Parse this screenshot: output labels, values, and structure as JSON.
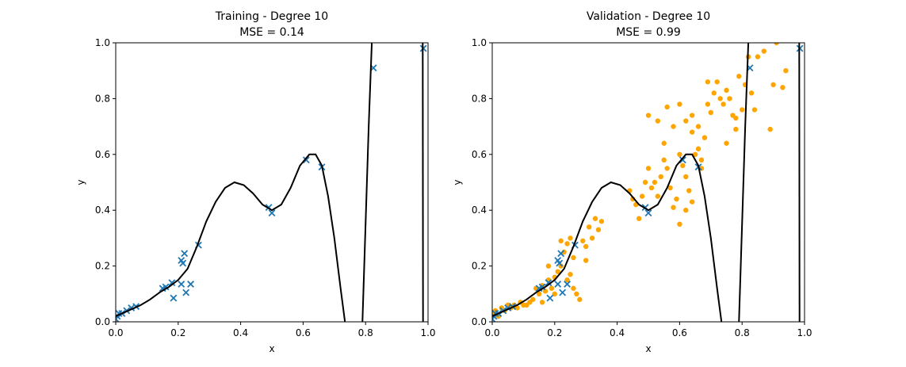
{
  "colors": {
    "train_marker": "#1f77b4",
    "val_marker": "#ffa500",
    "curve": "#000000",
    "axes": "#000000"
  },
  "chart_data": [
    {
      "id": "training",
      "type": "scatter",
      "title": "Training - Degree 10",
      "subtitle": "MSE = 0.14",
      "xlabel": "x",
      "ylabel": "y",
      "xlim": [
        0,
        1
      ],
      "ylim": [
        0,
        1
      ],
      "xticks": [
        "0.0",
        "0.2",
        "0.4",
        "0.6",
        "0.8",
        "1.0"
      ],
      "yticks": [
        "0.0",
        "0.2",
        "0.4",
        "0.6",
        "0.8",
        "1.0"
      ],
      "grid": false,
      "series": [
        {
          "kind": "x-marker",
          "points": [
            [
              0.0,
              0.01
            ],
            [
              0.005,
              0.02
            ],
            [
              0.01,
              0.03
            ],
            [
              0.02,
              0.03
            ],
            [
              0.035,
              0.04
            ],
            [
              0.05,
              0.05
            ],
            [
              0.065,
              0.055
            ],
            [
              0.15,
              0.12
            ],
            [
              0.16,
              0.125
            ],
            [
              0.18,
              0.14
            ],
            [
              0.185,
              0.085
            ],
            [
              0.21,
              0.135
            ],
            [
              0.21,
              0.22
            ],
            [
              0.215,
              0.21
            ],
            [
              0.22,
              0.245
            ],
            [
              0.225,
              0.105
            ],
            [
              0.24,
              0.135
            ],
            [
              0.265,
              0.275
            ],
            [
              0.49,
              0.41
            ],
            [
              0.5,
              0.39
            ],
            [
              0.61,
              0.58
            ],
            [
              0.66,
              0.555
            ],
            [
              0.825,
              0.91
            ],
            [
              0.985,
              0.98
            ]
          ]
        },
        {
          "kind": "curve",
          "points": [
            [
              0.0,
              0.02
            ],
            [
              0.02,
              0.03
            ],
            [
              0.05,
              0.045
            ],
            [
              0.08,
              0.06
            ],
            [
              0.11,
              0.08
            ],
            [
              0.14,
              0.105
            ],
            [
              0.17,
              0.125
            ],
            [
              0.2,
              0.15
            ],
            [
              0.23,
              0.19
            ],
            [
              0.26,
              0.27
            ],
            [
              0.29,
              0.36
            ],
            [
              0.32,
              0.43
            ],
            [
              0.35,
              0.48
            ],
            [
              0.38,
              0.5
            ],
            [
              0.41,
              0.49
            ],
            [
              0.44,
              0.46
            ],
            [
              0.47,
              0.42
            ],
            [
              0.5,
              0.4
            ],
            [
              0.53,
              0.42
            ],
            [
              0.56,
              0.48
            ],
            [
              0.59,
              0.56
            ],
            [
              0.62,
              0.6
            ],
            [
              0.64,
              0.6
            ],
            [
              0.66,
              0.56
            ],
            [
              0.68,
              0.45
            ],
            [
              0.7,
              0.3
            ],
            [
              0.72,
              0.12
            ],
            [
              0.734,
              0.0
            ]
          ]
        },
        {
          "kind": "curve",
          "points": [
            [
              0.79,
              0.0
            ],
            [
              0.8,
              0.35
            ],
            [
              0.81,
              0.7
            ],
            [
              0.82,
              1.0
            ]
          ]
        },
        {
          "kind": "curve",
          "points": [
            [
              0.983,
              1.0
            ],
            [
              0.984,
              0.0
            ]
          ]
        }
      ]
    },
    {
      "id": "validation",
      "type": "scatter",
      "title": "Validation - Degree 10",
      "subtitle": "MSE = 0.99",
      "xlabel": "x",
      "ylabel": "y",
      "xlim": [
        0,
        1
      ],
      "ylim": [
        0,
        1
      ],
      "xticks": [
        "0.0",
        "0.2",
        "0.4",
        "0.6",
        "0.8",
        "1.0"
      ],
      "yticks": [
        "0.0",
        "0.2",
        "0.4",
        "0.6",
        "0.8",
        "1.0"
      ],
      "grid": false,
      "series": [
        {
          "kind": "dot",
          "points": [
            [
              0.0,
              0.03
            ],
            [
              0.01,
              0.04
            ],
            [
              0.02,
              0.02
            ],
            [
              0.03,
              0.05
            ],
            [
              0.04,
              0.04
            ],
            [
              0.05,
              0.06
            ],
            [
              0.06,
              0.05
            ],
            [
              0.07,
              0.06
            ],
            [
              0.08,
              0.05
            ],
            [
              0.09,
              0.07
            ],
            [
              0.1,
              0.06
            ],
            [
              0.11,
              0.06
            ],
            [
              0.12,
              0.07
            ],
            [
              0.13,
              0.08
            ],
            [
              0.14,
              0.12
            ],
            [
              0.15,
              0.1
            ],
            [
              0.16,
              0.13
            ],
            [
              0.17,
              0.11
            ],
            [
              0.18,
              0.15
            ],
            [
              0.19,
              0.12
            ],
            [
              0.2,
              0.16
            ],
            [
              0.21,
              0.18
            ],
            [
              0.22,
              0.2
            ],
            [
              0.23,
              0.25
            ],
            [
              0.24,
              0.28
            ],
            [
              0.25,
              0.17
            ],
            [
              0.26,
              0.12
            ],
            [
              0.27,
              0.1
            ],
            [
              0.28,
              0.08
            ],
            [
              0.22,
              0.29
            ],
            [
              0.25,
              0.3
            ],
            [
              0.3,
              0.27
            ],
            [
              0.32,
              0.3
            ],
            [
              0.33,
              0.37
            ],
            [
              0.34,
              0.33
            ],
            [
              0.3,
              0.22
            ],
            [
              0.18,
              0.2
            ],
            [
              0.16,
              0.07
            ],
            [
              0.2,
              0.1
            ],
            [
              0.24,
              0.15
            ],
            [
              0.26,
              0.23
            ],
            [
              0.29,
              0.29
            ],
            [
              0.31,
              0.34
            ],
            [
              0.35,
              0.36
            ],
            [
              0.44,
              0.47
            ],
            [
              0.45,
              0.44
            ],
            [
              0.46,
              0.42
            ],
            [
              0.47,
              0.37
            ],
            [
              0.48,
              0.45
            ],
            [
              0.49,
              0.5
            ],
            [
              0.5,
              0.55
            ],
            [
              0.51,
              0.48
            ],
            [
              0.52,
              0.5
            ],
            [
              0.53,
              0.45
            ],
            [
              0.54,
              0.52
            ],
            [
              0.55,
              0.58
            ],
            [
              0.56,
              0.55
            ],
            [
              0.57,
              0.48
            ],
            [
              0.58,
              0.41
            ],
            [
              0.59,
              0.44
            ],
            [
              0.6,
              0.6
            ],
            [
              0.61,
              0.56
            ],
            [
              0.62,
              0.52
            ],
            [
              0.63,
              0.47
            ],
            [
              0.64,
              0.43
            ],
            [
              0.65,
              0.6
            ],
            [
              0.66,
              0.62
            ],
            [
              0.67,
              0.58
            ],
            [
              0.68,
              0.66
            ],
            [
              0.5,
              0.74
            ],
            [
              0.53,
              0.72
            ],
            [
              0.55,
              0.64
            ],
            [
              0.56,
              0.77
            ],
            [
              0.58,
              0.7
            ],
            [
              0.6,
              0.78
            ],
            [
              0.62,
              0.72
            ],
            [
              0.64,
              0.74
            ],
            [
              0.66,
              0.7
            ],
            [
              0.69,
              0.78
            ],
            [
              0.7,
              0.75
            ],
            [
              0.71,
              0.82
            ],
            [
              0.72,
              0.86
            ],
            [
              0.73,
              0.8
            ],
            [
              0.74,
              0.78
            ],
            [
              0.75,
              0.83
            ],
            [
              0.76,
              0.8
            ],
            [
              0.77,
              0.74
            ],
            [
              0.78,
              0.73
            ],
            [
              0.79,
              0.88
            ],
            [
              0.8,
              0.76
            ],
            [
              0.81,
              0.85
            ],
            [
              0.82,
              0.95
            ],
            [
              0.83,
              0.82
            ],
            [
              0.84,
              0.76
            ],
            [
              0.85,
              0.95
            ],
            [
              0.87,
              0.97
            ],
            [
              0.89,
              0.69
            ],
            [
              0.9,
              0.85
            ],
            [
              0.91,
              1.0
            ],
            [
              0.93,
              0.84
            ],
            [
              0.94,
              0.9
            ],
            [
              0.75,
              0.64
            ],
            [
              0.69,
              0.86
            ],
            [
              0.78,
              0.69
            ],
            [
              0.6,
              0.35
            ],
            [
              0.62,
              0.4
            ],
            [
              0.64,
              0.68
            ],
            [
              0.67,
              0.55
            ]
          ]
        },
        {
          "kind": "x-marker",
          "points": [
            [
              0.0,
              0.01
            ],
            [
              0.005,
              0.02
            ],
            [
              0.01,
              0.03
            ],
            [
              0.02,
              0.03
            ],
            [
              0.035,
              0.04
            ],
            [
              0.05,
              0.05
            ],
            [
              0.065,
              0.055
            ],
            [
              0.15,
              0.12
            ],
            [
              0.16,
              0.125
            ],
            [
              0.18,
              0.14
            ],
            [
              0.185,
              0.085
            ],
            [
              0.21,
              0.135
            ],
            [
              0.21,
              0.22
            ],
            [
              0.215,
              0.21
            ],
            [
              0.22,
              0.245
            ],
            [
              0.225,
              0.105
            ],
            [
              0.24,
              0.135
            ],
            [
              0.265,
              0.275
            ],
            [
              0.49,
              0.41
            ],
            [
              0.5,
              0.39
            ],
            [
              0.61,
              0.58
            ],
            [
              0.66,
              0.555
            ],
            [
              0.825,
              0.91
            ],
            [
              0.985,
              0.98
            ]
          ]
        },
        {
          "kind": "curve",
          "points": [
            [
              0.0,
              0.02
            ],
            [
              0.02,
              0.03
            ],
            [
              0.05,
              0.045
            ],
            [
              0.08,
              0.06
            ],
            [
              0.11,
              0.08
            ],
            [
              0.14,
              0.105
            ],
            [
              0.17,
              0.125
            ],
            [
              0.2,
              0.15
            ],
            [
              0.23,
              0.19
            ],
            [
              0.26,
              0.27
            ],
            [
              0.29,
              0.36
            ],
            [
              0.32,
              0.43
            ],
            [
              0.35,
              0.48
            ],
            [
              0.38,
              0.5
            ],
            [
              0.41,
              0.49
            ],
            [
              0.44,
              0.46
            ],
            [
              0.47,
              0.42
            ],
            [
              0.5,
              0.4
            ],
            [
              0.53,
              0.42
            ],
            [
              0.56,
              0.48
            ],
            [
              0.59,
              0.56
            ],
            [
              0.62,
              0.6
            ],
            [
              0.64,
              0.6
            ],
            [
              0.66,
              0.56
            ],
            [
              0.68,
              0.45
            ],
            [
              0.7,
              0.3
            ],
            [
              0.72,
              0.12
            ],
            [
              0.734,
              0.0
            ]
          ]
        },
        {
          "kind": "curve",
          "points": [
            [
              0.79,
              0.0
            ],
            [
              0.8,
              0.35
            ],
            [
              0.81,
              0.7
            ],
            [
              0.82,
              1.0
            ]
          ]
        },
        {
          "kind": "curve",
          "points": [
            [
              0.983,
              1.0
            ],
            [
              0.984,
              0.0
            ]
          ]
        }
      ]
    }
  ]
}
